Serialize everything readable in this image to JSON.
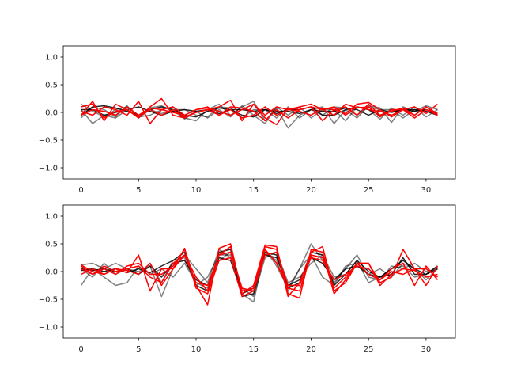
{
  "chart_data": [
    {
      "type": "line",
      "title": "",
      "xlabel": "",
      "ylabel": "",
      "xlim": [
        -1.55,
        32.55
      ],
      "ylim": [
        -1.2,
        1.2
      ],
      "xticks": [
        0,
        5,
        10,
        15,
        20,
        25,
        30
      ],
      "yticks": [
        -1.0,
        -0.5,
        0.0,
        0.5,
        1.0
      ],
      "xtick_labels": [
        "0",
        "5",
        "10",
        "15",
        "20",
        "25",
        "30"
      ],
      "ytick_labels": [
        "−1.0",
        "−0.5",
        "0.0",
        "0.5",
        "1.0"
      ],
      "grid": false,
      "x": [
        0,
        1,
        2,
        3,
        4,
        5,
        6,
        7,
        8,
        9,
        10,
        11,
        12,
        13,
        14,
        15,
        16,
        17,
        18,
        19,
        20,
        21,
        22,
        23,
        24,
        25,
        26,
        27,
        28,
        29,
        30,
        31
      ],
      "series": [
        {
          "color": "#000000",
          "opacity": 0.5,
          "values": [
            0.15,
            0.02,
            -0.08,
            0.05,
            0.1,
            -0.05,
            0.08,
            0.12,
            0.02,
            -0.1,
            -0.15,
            0.05,
            0.15,
            -0.05,
            0.1,
            0.2,
            -0.15,
            0.08,
            -0.28,
            -0.05,
            0.05,
            0.1,
            -0.2,
            0.05,
            -0.1,
            0.12,
            0.08,
            -0.18,
            0.1,
            0.02,
            0.12,
            0.05
          ]
        },
        {
          "color": "#000000",
          "opacity": 0.5,
          "values": [
            0.05,
            -0.2,
            -0.05,
            -0.1,
            0.05,
            -0.08,
            -0.05,
            0.05,
            0.1,
            -0.12,
            0.02,
            -0.1,
            0.05,
            -0.08,
            0.12,
            -0.05,
            -0.2,
            0.1,
            -0.05,
            0.1,
            -0.1,
            0.05,
            0.05,
            -0.15,
            0.1,
            0.05,
            -0.12,
            0.08,
            -0.05,
            0.1,
            -0.08,
            0.05
          ]
        },
        {
          "color": "#000000",
          "opacity": 0.5,
          "values": [
            -0.1,
            0.1,
            0.05,
            -0.08,
            0.12,
            -0.1,
            0.05,
            -0.02,
            0.05,
            0.05,
            -0.05,
            -0.08,
            0.1,
            0.08,
            -0.1,
            0.05,
            0.05,
            -0.1,
            0.1,
            -0.1,
            0.05,
            -0.05,
            0.1,
            0.08,
            -0.05,
            0.1,
            0.05,
            0.05,
            -0.1,
            0.05,
            0.05,
            -0.05
          ]
        },
        {
          "color": "#000000",
          "opacity": 0.85,
          "values": [
            -0.05,
            0.1,
            0.12,
            0.08,
            0.02,
            -0.05,
            0.05,
            0.1,
            0.05,
            -0.05,
            -0.08,
            0.02,
            0.08,
            0.05,
            -0.05,
            -0.08,
            0.05,
            -0.02,
            0.05,
            0.05,
            0.1,
            -0.05,
            -0.05,
            0.05,
            0.1,
            0.05,
            -0.05,
            0.02,
            0.05,
            0.05,
            0.02,
            -0.05
          ]
        },
        {
          "color": "#000000",
          "opacity": 0.85,
          "values": [
            0.05,
            0.05,
            -0.05,
            0.0,
            0.05,
            0.1,
            0.02,
            -0.05,
            0.02,
            0.05,
            0.02,
            0.05,
            -0.02,
            0.05,
            0.05,
            0.02,
            0.05,
            0.02,
            0.02,
            -0.02,
            0.05,
            0.02,
            0.02,
            0.08,
            0.05,
            -0.05,
            0.05,
            0.0,
            0.05,
            0.02,
            0.05,
            -0.02
          ]
        },
        {
          "color": "#ff0000",
          "opacity": 1.0,
          "values": [
            -0.05,
            0.2,
            -0.15,
            0.15,
            0.05,
            -0.1,
            0.1,
            0.25,
            -0.05,
            -0.1,
            0.0,
            0.05,
            0.1,
            0.22,
            -0.15,
            0.15,
            -0.1,
            -0.22,
            0.08,
            0.05,
            0.1,
            -0.15,
            0.05,
            0.1,
            -0.05,
            0.15,
            -0.05,
            0.02,
            0.08,
            -0.05,
            0.1,
            -0.05
          ]
        },
        {
          "color": "#ff0000",
          "opacity": 1.0,
          "values": [
            0.02,
            -0.05,
            0.1,
            0.05,
            -0.05,
            0.2,
            -0.2,
            0.05,
            0.1,
            -0.05,
            0.05,
            0.1,
            -0.05,
            0.05,
            -0.1,
            -0.05,
            0.1,
            -0.05,
            0.05,
            0.1,
            0.15,
            0.05,
            0.1,
            -0.05,
            0.1,
            0.05,
            0.02,
            -0.05,
            0.05,
            0.1,
            -0.02,
            0.15
          ]
        },
        {
          "color": "#ff0000",
          "opacity": 1.0,
          "values": [
            0.1,
            0.15,
            -0.1,
            0.02,
            0.05,
            -0.08,
            0.05,
            -0.05,
            0.05,
            -0.08,
            0.0,
            0.05,
            -0.05,
            0.1,
            0.08,
            0.02,
            -0.15,
            0.05,
            -0.1,
            0.05,
            0.1,
            0.05,
            -0.05,
            0.15,
            0.08,
            0.1,
            -0.08,
            0.05,
            0.05,
            -0.05,
            0.1,
            -0.02
          ]
        },
        {
          "color": "#ff0000",
          "opacity": 1.0,
          "values": [
            -0.05,
            0.05,
            0.02,
            -0.05,
            0.1,
            -0.05,
            0.08,
            0.05,
            0.0,
            -0.05,
            0.05,
            0.08,
            0.02,
            -0.05,
            0.05,
            0.15,
            -0.05,
            0.1,
            0.05,
            0.02,
            -0.05,
            0.08,
            0.05,
            -0.02,
            0.15,
            0.18,
            0.05,
            -0.08,
            0.05,
            -0.1,
            0.05,
            -0.05
          ]
        }
      ]
    },
    {
      "type": "line",
      "title": "",
      "xlabel": "",
      "ylabel": "",
      "xlim": [
        -1.55,
        32.55
      ],
      "ylim": [
        -1.2,
        1.2
      ],
      "xticks": [
        0,
        5,
        10,
        15,
        20,
        25,
        30
      ],
      "yticks": [
        -1.0,
        -0.5,
        0.0,
        0.5,
        1.0
      ],
      "xtick_labels": [
        "0",
        "5",
        "10",
        "15",
        "20",
        "25",
        "30"
      ],
      "ytick_labels": [
        "−1.0",
        "−0.5",
        "0.0",
        "0.5",
        "1.0"
      ],
      "grid": false,
      "x": [
        0,
        1,
        2,
        3,
        4,
        5,
        6,
        7,
        8,
        9,
        10,
        11,
        12,
        13,
        14,
        15,
        16,
        17,
        18,
        19,
        20,
        21,
        22,
        23,
        24,
        25,
        26,
        27,
        28,
        29,
        30,
        31
      ],
      "series": [
        {
          "color": "#000000",
          "opacity": 0.5,
          "values": [
            0.12,
            0.15,
            0.05,
            0.15,
            0.05,
            0.0,
            0.1,
            -0.45,
            0.05,
            0.3,
            0.05,
            -0.2,
            0.4,
            0.25,
            -0.4,
            -0.55,
            0.4,
            0.1,
            -0.3,
            0.05,
            0.5,
            0.2,
            -0.2,
            0.05,
            0.3,
            -0.1,
            -0.15,
            0.1,
            0.05,
            0.15,
            0.0,
            0.05
          ]
        },
        {
          "color": "#000000",
          "opacity": 0.5,
          "values": [
            -0.25,
            0.05,
            -0.1,
            -0.25,
            -0.2,
            0.1,
            -0.05,
            0.05,
            -0.1,
            0.15,
            -0.2,
            -0.3,
            0.2,
            0.35,
            -0.3,
            -0.45,
            0.25,
            0.35,
            -0.2,
            -0.1,
            0.15,
            0.3,
            -0.1,
            -0.05,
            0.2,
            -0.2,
            -0.1,
            0.05,
            0.1,
            -0.1,
            -0.05,
            0.1
          ]
        },
        {
          "color": "#000000",
          "opacity": 0.5,
          "values": [
            0.05,
            -0.1,
            0.15,
            -0.05,
            0.05,
            -0.05,
            0.15,
            -0.2,
            0.2,
            0.25,
            -0.25,
            -0.1,
            0.3,
            0.3,
            -0.35,
            -0.35,
            0.35,
            0.2,
            -0.35,
            0.05,
            0.3,
            -0.1,
            -0.25,
            0.1,
            0.15,
            -0.05,
            0.05,
            -0.1,
            0.15,
            0.05,
            -0.15,
            0.05
          ]
        },
        {
          "color": "#000000",
          "opacity": 0.85,
          "values": [
            0.05,
            0.02,
            0.05,
            0.0,
            0.05,
            -0.05,
            0.1,
            -0.1,
            0.15,
            0.2,
            -0.15,
            -0.25,
            0.25,
            0.2,
            -0.4,
            -0.3,
            0.3,
            0.25,
            -0.25,
            -0.15,
            0.25,
            0.15,
            -0.15,
            0.05,
            0.1,
            -0.05,
            -0.1,
            0.05,
            0.2,
            0.05,
            -0.05,
            0.05
          ]
        },
        {
          "color": "#000000",
          "opacity": 0.85,
          "values": [
            0.02,
            0.05,
            0.0,
            0.05,
            -0.02,
            0.05,
            -0.02,
            0.1,
            0.2,
            0.35,
            -0.25,
            -0.35,
            0.35,
            0.4,
            -0.45,
            -0.4,
            0.35,
            0.3,
            -0.3,
            -0.2,
            0.35,
            0.3,
            -0.25,
            -0.05,
            0.2,
            0.0,
            -0.1,
            -0.05,
            0.25,
            -0.05,
            -0.05,
            0.1
          ]
        },
        {
          "color": "#ff0000",
          "opacity": 1.0,
          "values": [
            0.12,
            0.0,
            -0.05,
            0.05,
            -0.02,
            0.3,
            -0.35,
            0.05,
            0.05,
            0.42,
            -0.25,
            -0.6,
            0.42,
            0.5,
            -0.4,
            -0.25,
            0.48,
            0.45,
            -0.4,
            -0.48,
            0.4,
            0.35,
            -0.4,
            -0.15,
            0.15,
            0.15,
            -0.2,
            -0.1,
            0.4,
            0.05,
            0.05,
            -0.1
          ]
        },
        {
          "color": "#ff0000",
          "opacity": 1.0,
          "values": [
            -0.05,
            0.05,
            -0.05,
            0.05,
            0.02,
            -0.05,
            0.15,
            -0.25,
            0.05,
            0.3,
            -0.1,
            -0.35,
            0.3,
            0.45,
            -0.35,
            -0.3,
            0.45,
            0.4,
            -0.45,
            -0.2,
            0.35,
            0.45,
            -0.35,
            -0.2,
            0.15,
            0.15,
            -0.25,
            -0.05,
            0.05,
            0.02,
            -0.1,
            -0.05
          ]
        },
        {
          "color": "#ff0000",
          "opacity": 1.0,
          "values": [
            0.05,
            -0.05,
            0.05,
            -0.05,
            0.1,
            0.15,
            -0.05,
            -0.05,
            0.1,
            0.4,
            -0.3,
            -0.4,
            0.2,
            0.25,
            -0.45,
            -0.35,
            0.3,
            0.35,
            -0.25,
            -0.25,
            0.25,
            0.2,
            -0.15,
            -0.05,
            0.1,
            0.05,
            -0.15,
            0.0,
            -0.05,
            0.05,
            -0.25,
            0.1
          ]
        },
        {
          "color": "#ff0000",
          "opacity": 1.0,
          "values": [
            0.1,
            -0.05,
            0.1,
            0.0,
            0.05,
            0.1,
            -0.1,
            -0.2,
            0.15,
            0.3,
            -0.2,
            -0.25,
            0.3,
            0.35,
            -0.3,
            -0.35,
            0.4,
            0.15,
            -0.3,
            -0.35,
            0.3,
            0.25,
            -0.3,
            -0.1,
            0.15,
            -0.05,
            -0.15,
            0.05,
            0.15,
            -0.25,
            0.1,
            -0.15
          ]
        }
      ]
    }
  ]
}
